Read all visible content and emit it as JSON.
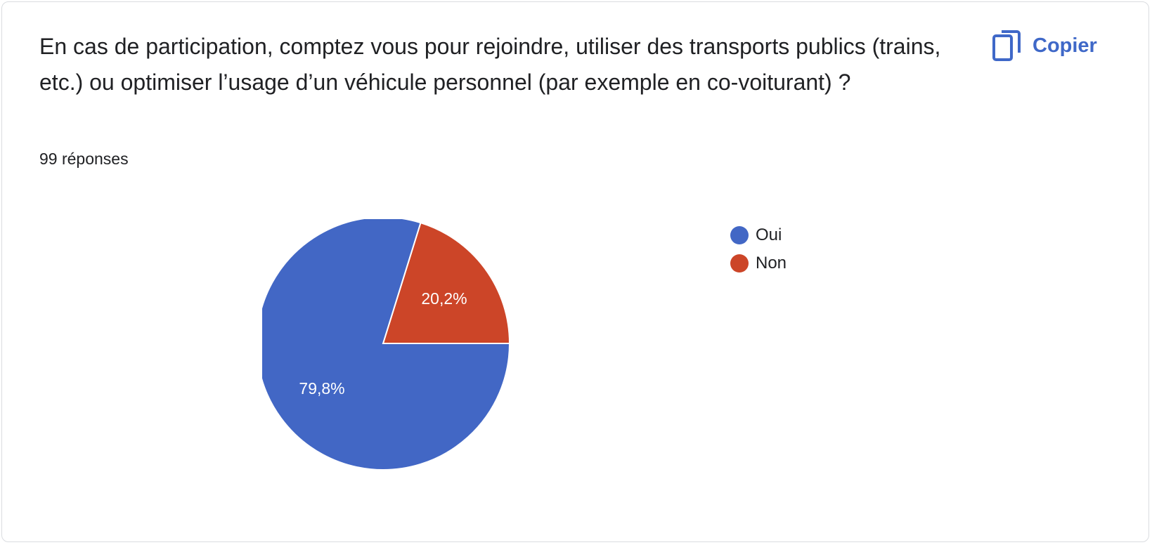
{
  "question": {
    "text": "En cas de participation, comptez vous pour rejoindre, utiliser des transports publics (trains, etc.) ou optimiser l’usage d’un véhicule personnel (par exemple en co-voiturant) ?",
    "responses": "99 réponses"
  },
  "actions": {
    "copy_label": "Copier",
    "copy_icon": "copy-icon"
  },
  "colors": {
    "accent": "#3f68c8",
    "oui": "#4267c5",
    "non": "#cc4528"
  },
  "chart_data": {
    "type": "pie",
    "categories": [
      "Oui",
      "Non"
    ],
    "values": [
      79.8,
      20.2
    ],
    "labels": [
      "79,8%",
      "20,2%"
    ],
    "colors": [
      "#4267c5",
      "#cc4528"
    ],
    "legend_position": "right"
  }
}
